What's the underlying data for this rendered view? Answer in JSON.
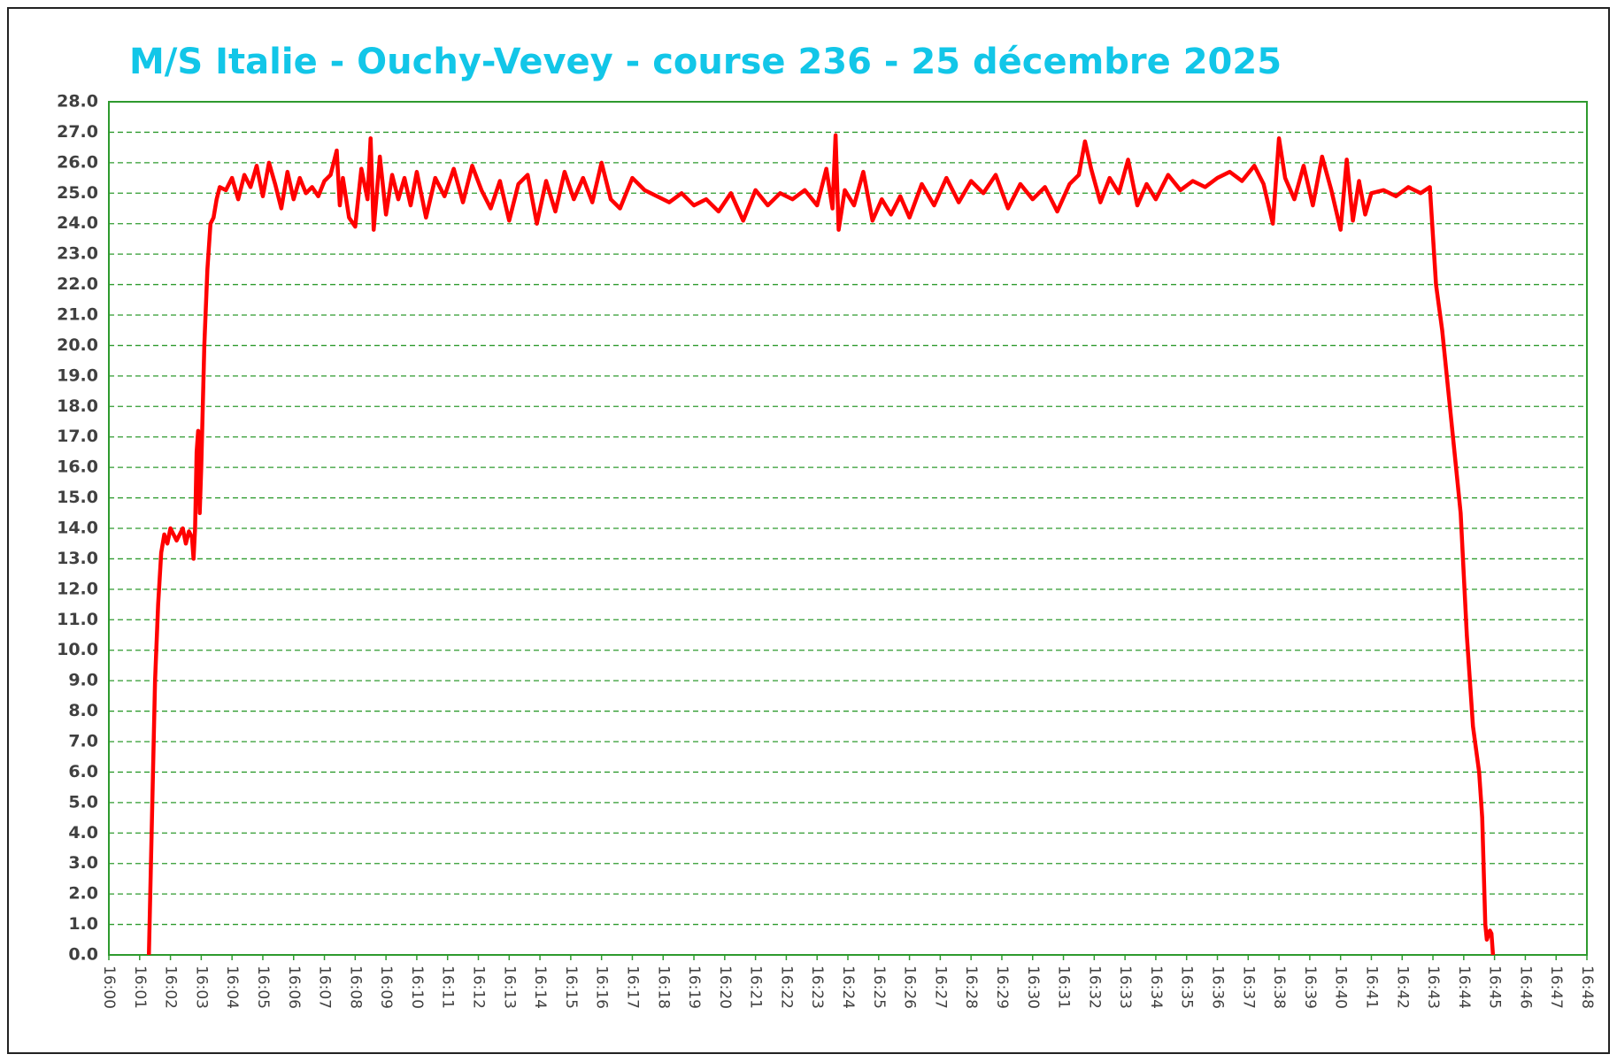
{
  "chart_data": {
    "type": "line",
    "title": "M/S Italie - Ouchy-Vevey - course 236 - 25 décembre 2025",
    "xlim": [
      0,
      48
    ],
    "ylim": [
      0,
      28
    ],
    "grid": true,
    "xticks": [
      {
        "value": 0,
        "label": "16:00"
      },
      {
        "value": 1,
        "label": "16:01"
      },
      {
        "value": 2,
        "label": "16:02"
      },
      {
        "value": 3,
        "label": "16:03"
      },
      {
        "value": 4,
        "label": "16:04"
      },
      {
        "value": 5,
        "label": "16:05"
      },
      {
        "value": 6,
        "label": "16:06"
      },
      {
        "value": 7,
        "label": "16:07"
      },
      {
        "value": 8,
        "label": "16:08"
      },
      {
        "value": 9,
        "label": "16:09"
      },
      {
        "value": 10,
        "label": "16:10"
      },
      {
        "value": 11,
        "label": "16:11"
      },
      {
        "value": 12,
        "label": "16:12"
      },
      {
        "value": 13,
        "label": "16:13"
      },
      {
        "value": 14,
        "label": "16:14"
      },
      {
        "value": 15,
        "label": "16:15"
      },
      {
        "value": 16,
        "label": "16:16"
      },
      {
        "value": 17,
        "label": "16:17"
      },
      {
        "value": 18,
        "label": "16:18"
      },
      {
        "value": 19,
        "label": "16:19"
      },
      {
        "value": 20,
        "label": "16:20"
      },
      {
        "value": 21,
        "label": "16:21"
      },
      {
        "value": 22,
        "label": "16:22"
      },
      {
        "value": 23,
        "label": "16:23"
      },
      {
        "value": 24,
        "label": "16:24"
      },
      {
        "value": 25,
        "label": "16:25"
      },
      {
        "value": 26,
        "label": "16:26"
      },
      {
        "value": 27,
        "label": "16:27"
      },
      {
        "value": 28,
        "label": "16:28"
      },
      {
        "value": 29,
        "label": "16:29"
      },
      {
        "value": 30,
        "label": "16:30"
      },
      {
        "value": 31,
        "label": "16:31"
      },
      {
        "value": 32,
        "label": "16:32"
      },
      {
        "value": 33,
        "label": "16:33"
      },
      {
        "value": 34,
        "label": "16:34"
      },
      {
        "value": 35,
        "label": "16:35"
      },
      {
        "value": 36,
        "label": "16:36"
      },
      {
        "value": 37,
        "label": "16:37"
      },
      {
        "value": 38,
        "label": "16:38"
      },
      {
        "value": 39,
        "label": "16:39"
      },
      {
        "value": 40,
        "label": "16:40"
      },
      {
        "value": 41,
        "label": "16:41"
      },
      {
        "value": 42,
        "label": "16:42"
      },
      {
        "value": 43,
        "label": "16:43"
      },
      {
        "value": 44,
        "label": "16:44"
      },
      {
        "value": 45,
        "label": "16:45"
      },
      {
        "value": 46,
        "label": "16:46"
      },
      {
        "value": 47,
        "label": "16:47"
      },
      {
        "value": 48,
        "label": "16:48"
      }
    ],
    "yticks": [
      {
        "value": 0,
        "label": "0.0"
      },
      {
        "value": 1,
        "label": "1.0"
      },
      {
        "value": 2,
        "label": "2.0"
      },
      {
        "value": 3,
        "label": "3.0"
      },
      {
        "value": 4,
        "label": "4.0"
      },
      {
        "value": 5,
        "label": "5.0"
      },
      {
        "value": 6,
        "label": "6.0"
      },
      {
        "value": 7,
        "label": "7.0"
      },
      {
        "value": 8,
        "label": "8.0"
      },
      {
        "value": 9,
        "label": "9.0"
      },
      {
        "value": 10,
        "label": "10.0"
      },
      {
        "value": 11,
        "label": "11.0"
      },
      {
        "value": 12,
        "label": "12.0"
      },
      {
        "value": 13,
        "label": "13.0"
      },
      {
        "value": 14,
        "label": "14.0"
      },
      {
        "value": 15,
        "label": "15.0"
      },
      {
        "value": 16,
        "label": "16.0"
      },
      {
        "value": 17,
        "label": "17.0"
      },
      {
        "value": 18,
        "label": "18.0"
      },
      {
        "value": 19,
        "label": "19.0"
      },
      {
        "value": 20,
        "label": "20.0"
      },
      {
        "value": 21,
        "label": "21.0"
      },
      {
        "value": 22,
        "label": "22.0"
      },
      {
        "value": 23,
        "label": "23.0"
      },
      {
        "value": 24,
        "label": "24.0"
      },
      {
        "value": 25,
        "label": "25.0"
      },
      {
        "value": 26,
        "label": "26.0"
      },
      {
        "value": 27,
        "label": "27.0"
      },
      {
        "value": 28,
        "label": "28.0"
      }
    ],
    "x": [
      1.3,
      1.4,
      1.5,
      1.6,
      1.7,
      1.8,
      1.9,
      2.0,
      2.2,
      2.4,
      2.5,
      2.6,
      2.7,
      2.75,
      2.8,
      2.85,
      2.9,
      2.95,
      3.0,
      3.1,
      3.2,
      3.3,
      3.4,
      3.5,
      3.6,
      3.8,
      4.0,
      4.2,
      4.4,
      4.6,
      4.8,
      5.0,
      5.2,
      5.4,
      5.6,
      5.8,
      6.0,
      6.2,
      6.4,
      6.6,
      6.8,
      7.0,
      7.2,
      7.4,
      7.5,
      7.6,
      7.8,
      8.0,
      8.2,
      8.4,
      8.5,
      8.6,
      8.8,
      9.0,
      9.2,
      9.4,
      9.6,
      9.8,
      10.0,
      10.3,
      10.6,
      10.9,
      11.2,
      11.5,
      11.8,
      12.1,
      12.4,
      12.7,
      13.0,
      13.3,
      13.6,
      13.9,
      14.2,
      14.5,
      14.8,
      15.1,
      15.4,
      15.7,
      16.0,
      16.3,
      16.6,
      17.0,
      17.4,
      17.8,
      18.2,
      18.6,
      19.0,
      19.4,
      19.8,
      20.2,
      20.6,
      21.0,
      21.4,
      21.8,
      22.2,
      22.6,
      23.0,
      23.3,
      23.5,
      23.6,
      23.7,
      23.9,
      24.2,
      24.5,
      24.8,
      25.1,
      25.4,
      25.7,
      26.0,
      26.4,
      26.8,
      27.2,
      27.6,
      28.0,
      28.4,
      28.8,
      29.2,
      29.6,
      30.0,
      30.4,
      30.8,
      31.2,
      31.5,
      31.7,
      31.9,
      32.2,
      32.5,
      32.8,
      33.1,
      33.4,
      33.7,
      34.0,
      34.4,
      34.8,
      35.2,
      35.6,
      36.0,
      36.4,
      36.8,
      37.2,
      37.5,
      37.8,
      38.0,
      38.2,
      38.5,
      38.8,
      39.1,
      39.4,
      39.7,
      40.0,
      40.2,
      40.4,
      40.6,
      40.8,
      41.0,
      41.4,
      41.8,
      42.2,
      42.6,
      42.9,
      43.1,
      43.3,
      43.5,
      43.7,
      43.9,
      44.1,
      44.3,
      44.5,
      44.6,
      44.7,
      44.75,
      44.85,
      44.9,
      44.95
    ],
    "series": [
      {
        "color": "#ff0000",
        "values": [
          0,
          4.5,
          9,
          11.5,
          13.2,
          13.8,
          13.5,
          14,
          13.6,
          14,
          13.5,
          13.9,
          13.7,
          13,
          14,
          16.5,
          17.2,
          14.5,
          16,
          20,
          22.5,
          24,
          24.2,
          24.8,
          25.2,
          25.1,
          25.5,
          24.8,
          25.6,
          25.2,
          25.9,
          24.9,
          26,
          25.3,
          24.5,
          25.7,
          24.8,
          25.5,
          25,
          25.2,
          24.9,
          25.4,
          25.6,
          26.4,
          24.6,
          25.5,
          24.2,
          23.9,
          25.8,
          24.8,
          26.8,
          23.8,
          26.2,
          24.3,
          25.6,
          24.8,
          25.5,
          24.6,
          25.7,
          24.2,
          25.5,
          24.9,
          25.8,
          24.7,
          25.9,
          25.1,
          24.5,
          25.4,
          24.1,
          25.3,
          25.6,
          24.0,
          25.4,
          24.4,
          25.7,
          24.8,
          25.5,
          24.7,
          26.0,
          24.8,
          24.5,
          25.5,
          25.1,
          24.9,
          24.7,
          25,
          24.6,
          24.8,
          24.4,
          25,
          24.1,
          25.1,
          24.6,
          25,
          24.8,
          25.1,
          24.6,
          25.8,
          24.5,
          26.9,
          23.8,
          25.1,
          24.6,
          25.7,
          24.1,
          24.8,
          24.3,
          24.9,
          24.2,
          25.3,
          24.6,
          25.5,
          24.7,
          25.4,
          25,
          25.6,
          24.5,
          25.3,
          24.8,
          25.2,
          24.4,
          25.3,
          25.6,
          26.7,
          25.8,
          24.7,
          25.5,
          25,
          26.1,
          24.6,
          25.3,
          24.8,
          25.6,
          25.1,
          25.4,
          25.2,
          25.5,
          25.7,
          25.4,
          25.9,
          25.3,
          24.0,
          26.8,
          25.5,
          24.8,
          25.9,
          24.6,
          26.2,
          25.1,
          23.8,
          26.1,
          24.1,
          25.4,
          24.3,
          25,
          25.1,
          24.9,
          25.2,
          25,
          25.2,
          22,
          20.5,
          18.5,
          16.5,
          14.5,
          10.5,
          7.5,
          6,
          4.5,
          1,
          0.5,
          0.8,
          0.7,
          0
        ]
      }
    ]
  }
}
